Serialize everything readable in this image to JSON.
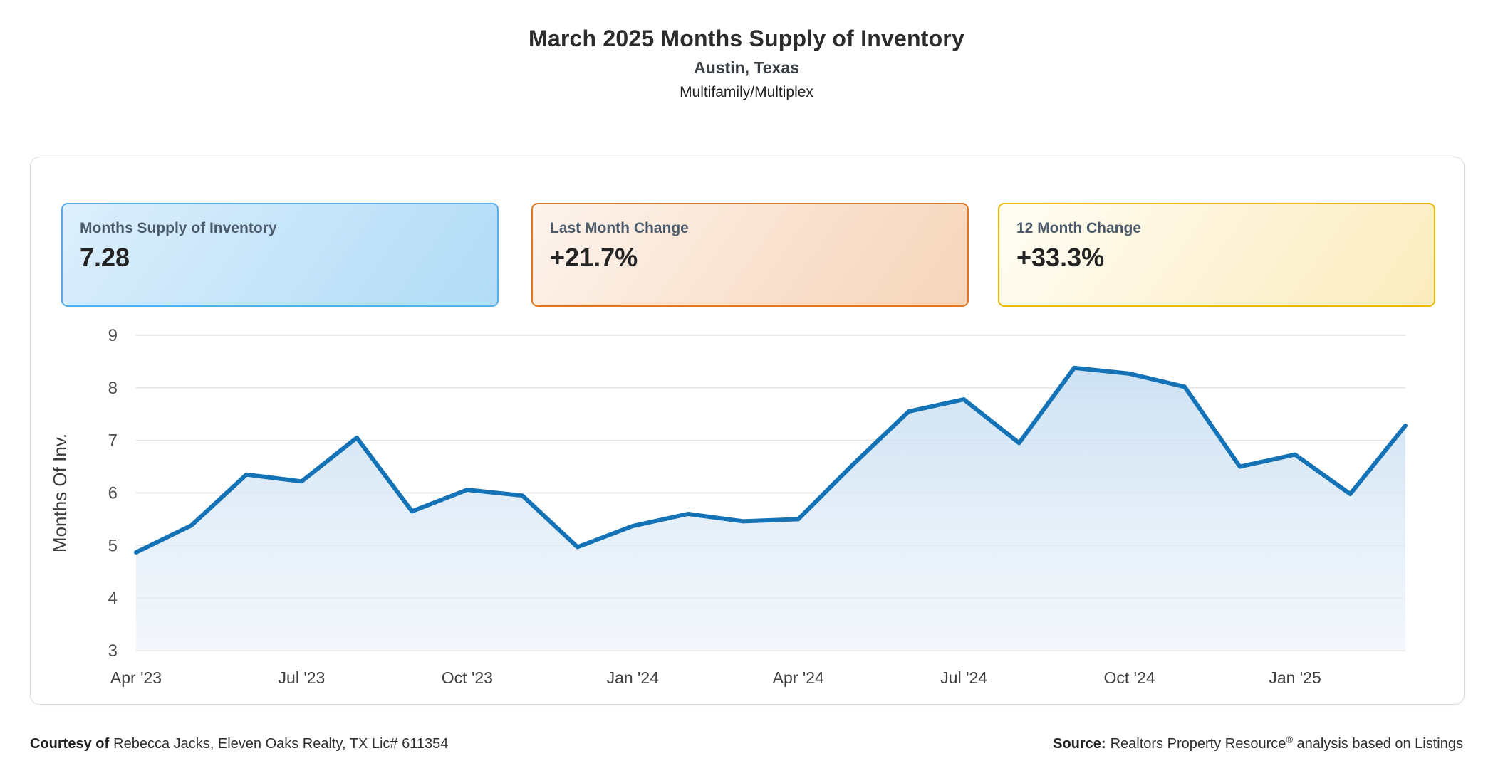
{
  "header": {
    "title": "March 2025 Months Supply of Inventory",
    "subtitle": "Austin, Texas",
    "category": "Multifamily/Multiplex"
  },
  "stat_cards": [
    {
      "label": "Months Supply of Inventory",
      "value": "7.28",
      "accent": "#55aee9"
    },
    {
      "label": "Last Month Change",
      "value": "+21.7%",
      "accent": "#e2751d"
    },
    {
      "label": "12 Month Change",
      "value": "+33.3%",
      "accent": "#eeb902"
    }
  ],
  "chart_data": {
    "type": "area",
    "title": "",
    "xlabel": "",
    "ylabel": "Months Of Inv.",
    "ylim": [
      3,
      9
    ],
    "y_ticks": [
      3,
      4,
      5,
      6,
      7,
      8,
      9
    ],
    "grid": "horizontal",
    "legend": "none",
    "x": [
      "Apr '23",
      "May '23",
      "Jun '23",
      "Jul '23",
      "Aug '23",
      "Sep '23",
      "Oct '23",
      "Nov '23",
      "Dec '23",
      "Jan '24",
      "Feb '24",
      "Mar '24",
      "Apr '24",
      "May '24",
      "Jun '24",
      "Jul '24",
      "Aug '24",
      "Sep '24",
      "Oct '24",
      "Nov '24",
      "Dec '24",
      "Jan '25",
      "Feb '25",
      "Mar '25"
    ],
    "x_tick_indices": [
      0,
      3,
      6,
      9,
      12,
      15,
      18,
      21
    ],
    "x_tick_labels": [
      "Apr '23",
      "Jul '23",
      "Oct '23",
      "Jan '24",
      "Apr '24",
      "Jul '24",
      "Oct '24",
      "Jan '25"
    ],
    "series": [
      {
        "name": "Months Supply of Inventory",
        "values": [
          4.87,
          5.38,
          6.35,
          6.22,
          7.05,
          5.65,
          6.06,
          5.95,
          4.97,
          5.37,
          5.6,
          5.46,
          5.5,
          6.55,
          7.55,
          7.78,
          6.95,
          8.38,
          8.27,
          8.02,
          6.5,
          6.73,
          5.98,
          7.28
        ]
      }
    ],
    "line_color": "#1472b7",
    "gridline_color": "#e3e3e3",
    "tick_color": "#4d4d4d"
  },
  "footer": {
    "courtesy_label": "Courtesy of",
    "courtesy_text": "Rebecca Jacks, Eleven Oaks Realty, TX Lic# 611354",
    "source_label": "Source:",
    "source_name": "Realtors Property Resource",
    "source_reg": "®",
    "source_text": "analysis based on Listings"
  }
}
